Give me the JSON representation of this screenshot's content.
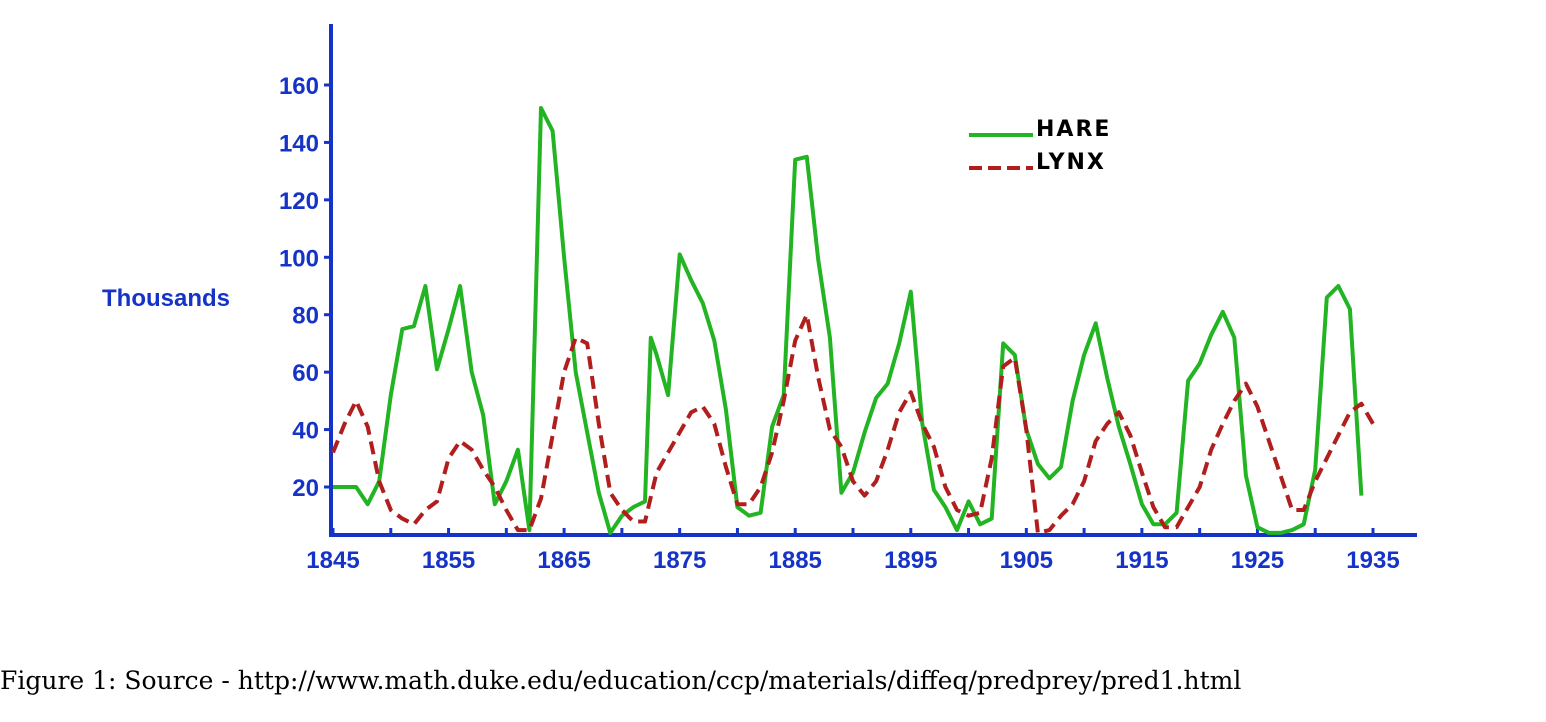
{
  "caption": "Figure 1: Source - http://www.math.duke.edu/education/ccp/materials/diffeq/predprey/pred1.html",
  "chart_data": {
    "type": "line",
    "ylabel": "Thousands",
    "xlim": [
      1845,
      1937
    ],
    "ylim": [
      3,
      168
    ],
    "x_tick_labels": [
      "1845",
      "1855",
      "1865",
      "1875",
      "1885",
      "1895",
      "1905",
      "1915",
      "1925",
      "1935"
    ],
    "y_tick_labels": [
      "20",
      "40",
      "60",
      "80",
      "100",
      "120",
      "140",
      "160"
    ],
    "legend_placement": "top-right",
    "colors": {
      "axis": "#1533c6",
      "hare": "#22b422",
      "lynx": "#b01e1e"
    },
    "series": [
      {
        "name": "HARE",
        "style": "solid",
        "points": [
          [
            1845,
            20
          ],
          [
            1847,
            20
          ],
          [
            1848,
            14
          ],
          [
            1849,
            22
          ],
          [
            1850,
            52
          ],
          [
            1851,
            75
          ],
          [
            1852,
            76
          ],
          [
            1853,
            90
          ],
          [
            1854,
            61
          ],
          [
            1855,
            75
          ],
          [
            1856,
            90
          ],
          [
            1857,
            60
          ],
          [
            1858,
            45
          ],
          [
            1859,
            14
          ],
          [
            1860,
            22
          ],
          [
            1861,
            33
          ],
          [
            1862,
            5
          ],
          [
            1863,
            152
          ],
          [
            1864,
            144
          ],
          [
            1865,
            100
          ],
          [
            1866,
            60
          ],
          [
            1867,
            39
          ],
          [
            1868,
            18
          ],
          [
            1869,
            4
          ],
          [
            1870,
            10
          ],
          [
            1871,
            13
          ],
          [
            1872,
            15
          ],
          [
            1872.5,
            72
          ],
          [
            1873,
            66
          ],
          [
            1874,
            52
          ],
          [
            1875,
            101
          ],
          [
            1876,
            92
          ],
          [
            1877,
            84
          ],
          [
            1878,
            71
          ],
          [
            1879,
            47
          ],
          [
            1880,
            13
          ],
          [
            1881,
            10
          ],
          [
            1882,
            11
          ],
          [
            1883,
            41
          ],
          [
            1884,
            52
          ],
          [
            1885,
            134
          ],
          [
            1886,
            135
          ],
          [
            1887,
            99
          ],
          [
            1888,
            72
          ],
          [
            1889,
            18
          ],
          [
            1890,
            25
          ],
          [
            1891,
            39
          ],
          [
            1892,
            51
          ],
          [
            1893,
            56
          ],
          [
            1894,
            70
          ],
          [
            1895,
            88
          ],
          [
            1896,
            42
          ],
          [
            1897,
            19
          ],
          [
            1898,
            13
          ],
          [
            1899,
            5
          ],
          [
            1900,
            15
          ],
          [
            1901,
            7
          ],
          [
            1902,
            9
          ],
          [
            1903,
            70
          ],
          [
            1904,
            66
          ],
          [
            1905,
            40
          ],
          [
            1906,
            28
          ],
          [
            1907,
            23
          ],
          [
            1908,
            27
          ],
          [
            1909,
            50
          ],
          [
            1910,
            66
          ],
          [
            1911,
            77
          ],
          [
            1912,
            58
          ],
          [
            1913,
            41
          ],
          [
            1914,
            28
          ],
          [
            1915,
            14
          ],
          [
            1916,
            7
          ],
          [
            1917,
            7
          ],
          [
            1918,
            11
          ],
          [
            1919,
            57
          ],
          [
            1920,
            63
          ],
          [
            1921,
            73
          ],
          [
            1922,
            81
          ],
          [
            1923,
            72
          ],
          [
            1924,
            24
          ],
          [
            1925,
            6
          ],
          [
            1926,
            4
          ],
          [
            1927,
            4
          ],
          [
            1928,
            5
          ],
          [
            1929,
            7
          ],
          [
            1930,
            26
          ],
          [
            1931,
            86
          ],
          [
            1932,
            90
          ],
          [
            1933,
            82
          ],
          [
            1934,
            17
          ]
        ]
      },
      {
        "name": "LYNX",
        "style": "dashed",
        "points": [
          [
            1845,
            32
          ],
          [
            1846,
            42
          ],
          [
            1847,
            50
          ],
          [
            1848,
            41
          ],
          [
            1849,
            22
          ],
          [
            1850,
            12
          ],
          [
            1851,
            9
          ],
          [
            1852,
            7
          ],
          [
            1853,
            12
          ],
          [
            1854,
            15
          ],
          [
            1855,
            30
          ],
          [
            1856,
            36
          ],
          [
            1857,
            33
          ],
          [
            1858,
            26
          ],
          [
            1859,
            20
          ],
          [
            1860,
            12
          ],
          [
            1861,
            5
          ],
          [
            1862,
            5
          ],
          [
            1863,
            16
          ],
          [
            1864,
            38
          ],
          [
            1865,
            60
          ],
          [
            1866,
            72
          ],
          [
            1867,
            70
          ],
          [
            1868,
            42
          ],
          [
            1869,
            18
          ],
          [
            1870,
            12
          ],
          [
            1871,
            8
          ],
          [
            1872,
            8
          ],
          [
            1873,
            25
          ],
          [
            1874,
            32
          ],
          [
            1875,
            39
          ],
          [
            1876,
            46
          ],
          [
            1877,
            48
          ],
          [
            1878,
            42
          ],
          [
            1879,
            27
          ],
          [
            1880,
            14
          ],
          [
            1881,
            14
          ],
          [
            1882,
            20
          ],
          [
            1883,
            32
          ],
          [
            1884,
            50
          ],
          [
            1885,
            71
          ],
          [
            1886,
            80
          ],
          [
            1887,
            58
          ],
          [
            1888,
            40
          ],
          [
            1889,
            34
          ],
          [
            1890,
            22
          ],
          [
            1891,
            17
          ],
          [
            1892,
            22
          ],
          [
            1893,
            33
          ],
          [
            1894,
            46
          ],
          [
            1895,
            53
          ],
          [
            1896,
            42
          ],
          [
            1897,
            34
          ],
          [
            1898,
            20
          ],
          [
            1899,
            12
          ],
          [
            1900,
            10
          ],
          [
            1901,
            11
          ],
          [
            1902,
            30
          ],
          [
            1903,
            62
          ],
          [
            1904,
            65
          ],
          [
            1905,
            40
          ],
          [
            1906,
            4
          ],
          [
            1907,
            5
          ],
          [
            1908,
            10
          ],
          [
            1909,
            14
          ],
          [
            1910,
            22
          ],
          [
            1911,
            36
          ],
          [
            1912,
            42
          ],
          [
            1913,
            46
          ],
          [
            1914,
            38
          ],
          [
            1915,
            25
          ],
          [
            1916,
            13
          ],
          [
            1917,
            6
          ],
          [
            1918,
            6
          ],
          [
            1919,
            13
          ],
          [
            1920,
            20
          ],
          [
            1921,
            33
          ],
          [
            1922,
            42
          ],
          [
            1923,
            50
          ],
          [
            1924,
            56
          ],
          [
            1925,
            48
          ],
          [
            1926,
            36
          ],
          [
            1927,
            24
          ],
          [
            1928,
            12
          ],
          [
            1929,
            12
          ],
          [
            1930,
            22
          ],
          [
            1931,
            30
          ],
          [
            1932,
            38
          ],
          [
            1933,
            46
          ],
          [
            1934,
            49
          ],
          [
            1935,
            42
          ]
        ]
      }
    ]
  }
}
